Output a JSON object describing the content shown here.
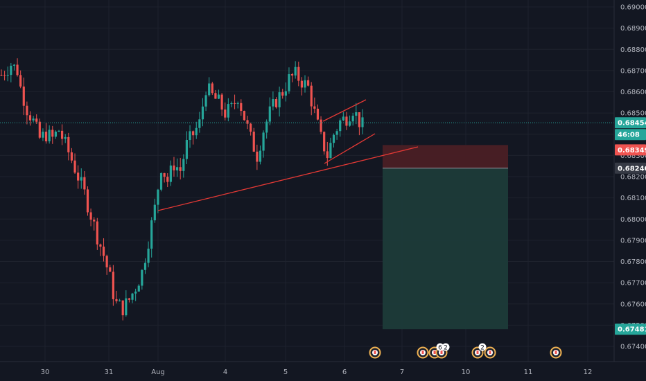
{
  "colors": {
    "background": "#131722",
    "grid": "#1e222d",
    "up": "#26a69a",
    "down": "#ef5350",
    "trendline": "#e53935",
    "price_line": "#26a69a",
    "short_target": "#1c3b39",
    "short_stop": "#4a1f25",
    "axis_text": "#b2b5be",
    "event_icon": "#f0b252"
  },
  "price_scale": {
    "ticks": [
      "0.69000",
      "0.68900",
      "0.68800",
      "0.68700",
      "0.68600",
      "0.68500",
      "0.68400",
      "0.68300",
      "0.68200",
      "0.68100",
      "0.68000",
      "0.67900",
      "0.67800",
      "0.67700",
      "0.67600",
      "0.67500",
      "0.67400"
    ],
    "tick_values": [
      0.69,
      0.689,
      0.688,
      0.687,
      0.686,
      0.685,
      0.684,
      0.683,
      0.682,
      0.681,
      0.68,
      0.679,
      0.678,
      0.677,
      0.676,
      0.675,
      0.674
    ]
  },
  "time_scale": {
    "labels": [
      "30",
      "31",
      "Aug",
      "4",
      "5",
      "6",
      "7",
      "10",
      "11",
      "12"
    ]
  },
  "tags": {
    "last_price": {
      "label": "0.68454",
      "value": 0.68454
    },
    "countdown": {
      "label": "46:08"
    },
    "stop": {
      "label": "0.68349",
      "value": 0.68349
    },
    "entry": {
      "label": "0.68240",
      "value": 0.6824
    },
    "target": {
      "label": "0.67481",
      "value": 0.67481
    }
  },
  "events": {
    "icon": "calendar-event-icon",
    "badges": [
      "6",
      "2",
      "2"
    ]
  },
  "chart_data": {
    "type": "candlestick",
    "symbol_pair_hint": "",
    "ylim": [
      0.6735,
      0.6905
    ],
    "x": [
      "30",
      "31",
      "Aug",
      "4",
      "5",
      "6",
      "7",
      "10",
      "11",
      "12"
    ],
    "path_points": [
      [
        0,
        0.6868
      ],
      [
        3,
        0.6873
      ],
      [
        5,
        0.687
      ],
      [
        6,
        0.6862
      ],
      [
        8,
        0.6852
      ],
      [
        10,
        0.6846
      ],
      [
        12,
        0.6838
      ],
      [
        14,
        0.684
      ],
      [
        16,
        0.6838
      ],
      [
        18,
        0.6842
      ],
      [
        20,
        0.6835
      ],
      [
        22,
        0.6828
      ],
      [
        24,
        0.682
      ],
      [
        26,
        0.6812
      ],
      [
        28,
        0.6802
      ],
      [
        30,
        0.6792
      ],
      [
        32,
        0.6783
      ],
      [
        34,
        0.6772
      ],
      [
        35,
        0.6765
      ],
      [
        36,
        0.676
      ],
      [
        38,
        0.6758
      ],
      [
        40,
        0.6762
      ],
      [
        42,
        0.6768
      ],
      [
        44,
        0.6775
      ],
      [
        46,
        0.679
      ],
      [
        48,
        0.6805
      ],
      [
        50,
        0.6825
      ],
      [
        52,
        0.6818
      ],
      [
        54,
        0.6826
      ],
      [
        56,
        0.6823
      ],
      [
        58,
        0.6835
      ],
      [
        60,
        0.684
      ],
      [
        62,
        0.6845
      ],
      [
        64,
        0.6862
      ],
      [
        66,
        0.6858
      ],
      [
        68,
        0.6855
      ],
      [
        70,
        0.685
      ],
      [
        72,
        0.6852
      ],
      [
        74,
        0.6858
      ],
      [
        76,
        0.6848
      ],
      [
        78,
        0.6838
      ],
      [
        80,
        0.683
      ],
      [
        82,
        0.6842
      ],
      [
        84,
        0.685
      ],
      [
        86,
        0.6856
      ],
      [
        88,
        0.686
      ],
      [
        90,
        0.6866
      ],
      [
        92,
        0.6868
      ],
      [
        94,
        0.6865
      ],
      [
        96,
        0.6862
      ],
      [
        98,
        0.685
      ],
      [
        100,
        0.6838
      ],
      [
        102,
        0.683
      ],
      [
        104,
        0.684
      ],
      [
        106,
        0.6846
      ],
      [
        108,
        0.6848
      ],
      [
        110,
        0.6852
      ],
      [
        112,
        0.6846
      ],
      [
        113,
        0.6844
      ]
    ],
    "candle_count": 114,
    "trendlines": [
      {
        "name": "lower-support",
        "from": [
          "Aug",
          0.6804
        ],
        "to": [
          "7",
          0.6836
        ]
      },
      {
        "name": "wedge-upper",
        "from": [
          "5",
          0.6847
        ],
        "to": [
          "6",
          0.6855
        ]
      },
      {
        "name": "wedge-lower",
        "from": [
          "5",
          0.6826
        ],
        "to": [
          "6",
          0.684
        ]
      }
    ],
    "short_position": {
      "entry": 0.6824,
      "stop": 0.68349,
      "target": 0.67481
    },
    "price_line": 0.68454
  }
}
